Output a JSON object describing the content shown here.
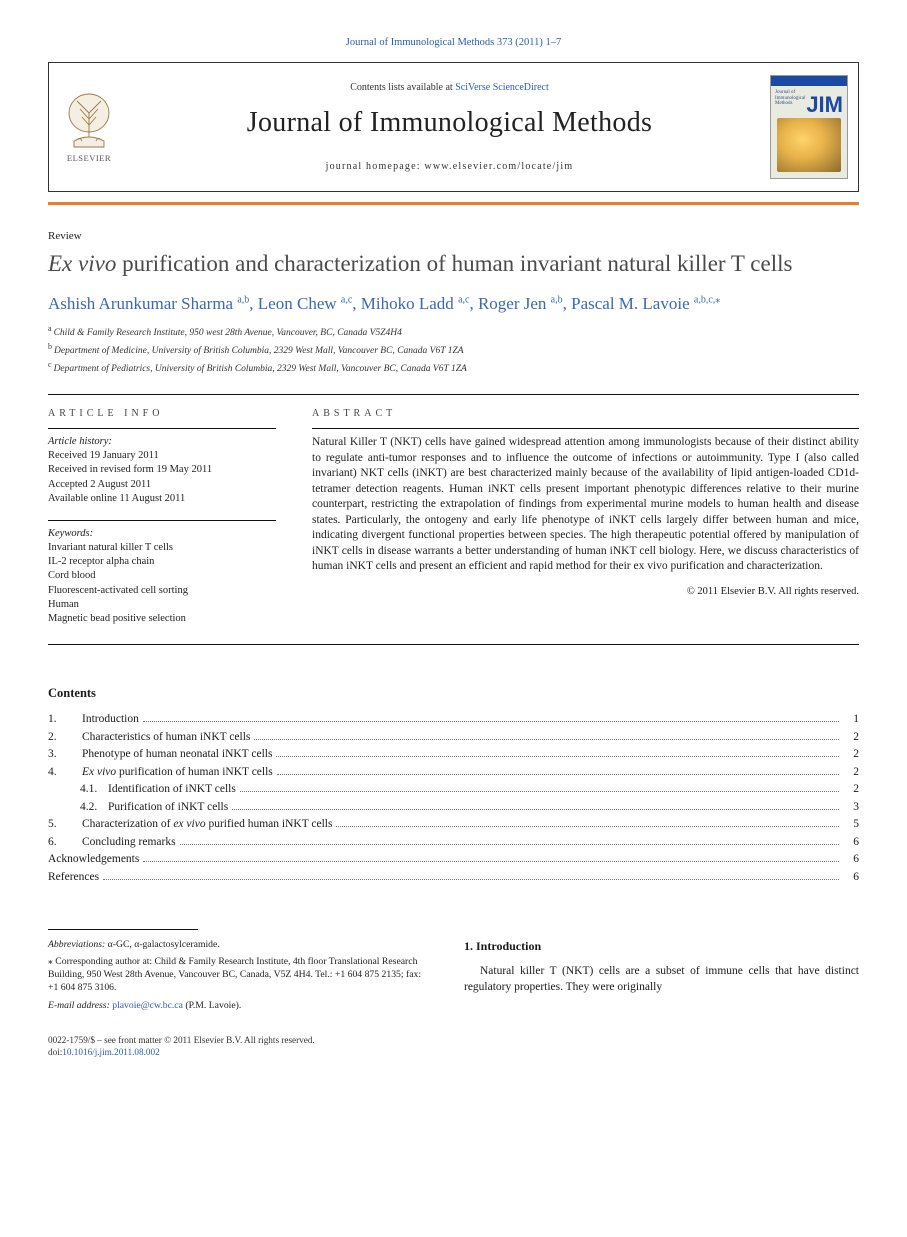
{
  "citation": "Journal of Immunological Methods 373 (2011) 1–7",
  "header": {
    "contents_prefix": "Contents lists available at ",
    "contents_link": "SciVerse ScienceDirect",
    "journal_name": "Journal of Immunological Methods",
    "homepage_label": "journal homepage: www.elsevier.com/locate/jim",
    "elsevier_label": "ELSEVIER",
    "cover_jm": "JIM",
    "cover_small1": "Journal of",
    "cover_small2": "Immunological",
    "cover_small3": "Methods"
  },
  "article_type": "Review",
  "title_italic": "Ex vivo",
  "title_rest": " purification and characterization of human invariant natural killer T cells",
  "authors": [
    {
      "name": "Ashish Arunkumar Sharma",
      "affs": "a,b"
    },
    {
      "name": "Leon Chew",
      "affs": "a,c"
    },
    {
      "name": "Mihoko Ladd",
      "affs": "a,c"
    },
    {
      "name": "Roger Jen",
      "affs": "a,b"
    },
    {
      "name": "Pascal M. Lavoie",
      "affs": "a,b,c,",
      "corr": true
    }
  ],
  "affiliations": [
    {
      "sup": "a",
      "text": "Child & Family Research Institute, 950 west 28th Avenue, Vancouver, BC, Canada V5Z4H4"
    },
    {
      "sup": "b",
      "text": "Department of Medicine, University of British Columbia, 2329 West Mall, Vancouver BC, Canada V6T 1ZA"
    },
    {
      "sup": "c",
      "text": "Department of Pediatrics, University of British Columbia, 2329 West Mall, Vancouver BC, Canada V6T 1ZA"
    }
  ],
  "info_head": "ARTICLE INFO",
  "abstract_head": "ABSTRACT",
  "history_label": "Article history:",
  "history": [
    "Received 19 January 2011",
    "Received in revised form 19 May 2011",
    "Accepted 2 August 2011",
    "Available online 11 August 2011"
  ],
  "keywords_label": "Keywords:",
  "keywords": [
    "Invariant natural killer T cells",
    "IL-2 receptor alpha chain",
    "Cord blood",
    "Fluorescent-activated cell sorting",
    "Human",
    "Magnetic bead positive selection"
  ],
  "abstract": "Natural Killer T (NKT) cells have gained widespread attention among immunologists because of their distinct ability to regulate anti-tumor responses and to influence the outcome of infections or autoimmunity. Type I (also called invariant) NKT cells (iNKT) are best characterized mainly because of the availability of lipid antigen-loaded CD1d-tetramer detection reagents. Human iNKT cells present important phenotypic differences relative to their murine counterpart, restricting the extrapolation of findings from experimental murine models to human health and disease states. Particularly, the ontogeny and early life phenotype of iNKT cells largely differ between human and mice, indicating divergent functional properties between species. The high therapeutic potential offered by manipulation of iNKT cells in disease warrants a better understanding of human iNKT cell biology. Here, we discuss characteristics of human iNKT cells and present an efficient and rapid method for their ex vivo purification and characterization.",
  "copyright": "© 2011 Elsevier B.V. All rights reserved.",
  "contents_label": "Contents",
  "toc": [
    {
      "num": "1.",
      "title": "Introduction",
      "page": "1"
    },
    {
      "num": "2.",
      "title": "Characteristics of human iNKT cells",
      "page": "2"
    },
    {
      "num": "3.",
      "title": "Phenotype of human neonatal iNKT cells",
      "page": "2"
    },
    {
      "num": "4.",
      "title_italic": "Ex vivo",
      "title": " purification of human iNKT cells",
      "page": "2"
    },
    {
      "num": "4.1.",
      "title": "Identification of iNKT cells",
      "page": "2",
      "indent": true
    },
    {
      "num": "4.2.",
      "title": "Purification of iNKT cells",
      "page": "3",
      "indent": true
    },
    {
      "num": "5.",
      "title_pre": "Characterization of ",
      "title_italic": "ex vivo",
      "title": " purified human iNKT cells",
      "page": "5"
    },
    {
      "num": "6.",
      "title": "Concluding remarks",
      "page": "6"
    },
    {
      "num": "",
      "title": "Acknowledgements",
      "page": "6",
      "nonum": true
    },
    {
      "num": "",
      "title": "References",
      "page": "6",
      "nonum": true
    }
  ],
  "footnotes": {
    "abbr_label": "Abbreviations:",
    "abbr_text": " α-GC, α-galactosylceramide.",
    "corr_star": "⁎",
    "corr_text": " Corresponding author at: Child & Family Research Institute, 4th floor Translational Research Building, 950 West 28th Avenue, Vancouver BC, Canada, V5Z 4H4. Tel.: +1 604 875 2135; fax: +1 604 875 3106.",
    "email_label": "E-mail address:",
    "email": "plavoie@cw.bc.ca",
    "email_suffix": " (P.M. Lavoie)."
  },
  "intro_head": "1. Introduction",
  "intro_text": "Natural killer T (NKT) cells are a subset of immune cells that have distinct regulatory properties. They were originally",
  "pagefoot": {
    "line1": "0022-1759/$ – see front matter © 2011 Elsevier B.V. All rights reserved.",
    "doi_label": "doi:",
    "doi": "10.1016/j.jim.2011.08.002"
  },
  "colors": {
    "link": "#2a5db0",
    "orange_rule": "#e57f2f",
    "author": "#3b68b5",
    "text": "#1a1a1a"
  }
}
